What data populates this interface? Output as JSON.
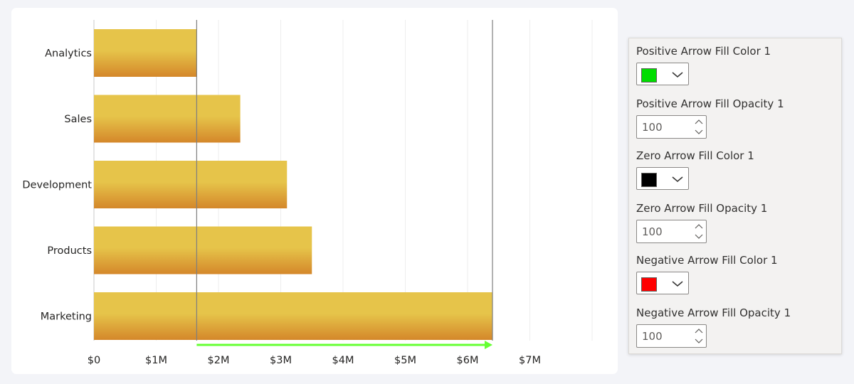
{
  "chart_data": {
    "type": "bar",
    "orientation": "horizontal",
    "categories": [
      "Analytics",
      "Sales",
      "Development",
      "Products",
      "Marketing"
    ],
    "values": [
      1.65,
      2.35,
      3.1,
      3.5,
      6.4
    ],
    "x_ticks": [
      "$0",
      "$1M",
      "$2M",
      "$3M",
      "$4M",
      "$5M",
      "$6M",
      "$7M"
    ],
    "xlim": [
      0,
      8
    ],
    "unit": "M",
    "bar_color_top": "#e6c44a",
    "bar_color_bottom": "#d4872a",
    "reference_lines": [
      1.65,
      6.4
    ],
    "variance_arrow": {
      "from": 1.65,
      "to": 6.4,
      "color": "#66ff33",
      "direction": "positive"
    },
    "grid": true
  },
  "panel": {
    "properties": [
      {
        "type": "color",
        "label": "Positive Arrow Fill Color 1",
        "color": "#00dd00"
      },
      {
        "type": "number",
        "label": "Positive Arrow Fill Opacity 1",
        "value": "100"
      },
      {
        "type": "color",
        "label": "Zero Arrow Fill Color 1",
        "color": "#000000"
      },
      {
        "type": "number",
        "label": "Zero Arrow Fill Opacity 1",
        "value": "100"
      },
      {
        "type": "color",
        "label": "Negative Arrow Fill Color 1",
        "color": "#ff0000"
      },
      {
        "type": "number",
        "label": "Negative Arrow Fill Opacity 1",
        "value": "100"
      }
    ]
  }
}
